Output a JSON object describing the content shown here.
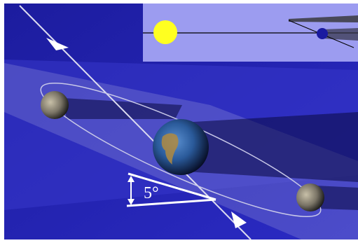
{
  "angle_label": "5°"
}
